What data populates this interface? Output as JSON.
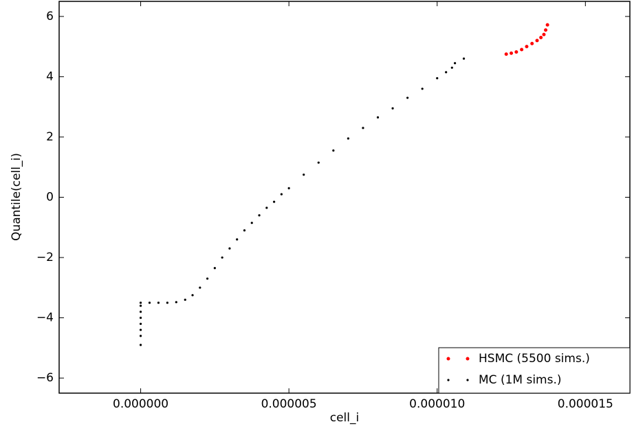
{
  "chart_data": {
    "type": "scatter",
    "xlabel": "cell_i",
    "ylabel": "Quantile(cell_i)",
    "xlim": [
      -2.75e-06,
      1.65e-05
    ],
    "ylim": [
      -6.5,
      6.5
    ],
    "xticks": [
      {
        "value": 0,
        "label": "0.000000"
      },
      {
        "value": 5e-06,
        "label": "0.000005"
      },
      {
        "value": 1e-05,
        "label": "0.000010"
      },
      {
        "value": 1.5e-05,
        "label": "0.000015"
      }
    ],
    "yticks": [
      {
        "value": -6,
        "label": "−6"
      },
      {
        "value": -4,
        "label": "−4"
      },
      {
        "value": -2,
        "label": "−2"
      },
      0,
      2,
      4,
      6
    ],
    "grid": false,
    "legend": "lower right",
    "series": [
      {
        "name": "HSMC (5500 sims.)",
        "color": "#ff0000",
        "x": [
          1.233e-05,
          1.25e-05,
          1.267e-05,
          1.285e-05,
          1.302e-05,
          1.32e-05,
          1.337e-05,
          1.35e-05,
          1.36e-05,
          1.366e-05,
          1.372e-05
        ],
        "values": [
          4.75,
          4.78,
          4.82,
          4.9,
          5.0,
          5.1,
          5.2,
          5.3,
          5.4,
          5.55,
          5.72
        ]
      },
      {
        "name": "MC (1M sims.)",
        "color": "#000000",
        "x": [
          0,
          0,
          0,
          0,
          0,
          0,
          0,
          0,
          3e-07,
          6e-07,
          9e-07,
          1.2e-06,
          1.5e-06,
          1.75e-06,
          2e-06,
          2.25e-06,
          2.5e-06,
          2.75e-06,
          3e-06,
          3.25e-06,
          3.5e-06,
          3.75e-06,
          4e-06,
          4.25e-06,
          4.5e-06,
          4.75e-06,
          5e-06,
          5.5e-06,
          6e-06,
          6.5e-06,
          7e-06,
          7.5e-06,
          8e-06,
          8.5e-06,
          9e-06,
          9.5e-06,
          1e-05,
          1.03e-05,
          1.05e-05,
          1.06e-05,
          1.09e-05
        ],
        "values": [
          -4.9,
          -4.6,
          -4.4,
          -4.2,
          -4.0,
          -3.8,
          -3.6,
          -3.5,
          -3.5,
          -3.5,
          -3.5,
          -3.48,
          -3.4,
          -3.25,
          -3.0,
          -2.7,
          -2.35,
          -2.0,
          -1.7,
          -1.4,
          -1.1,
          -0.85,
          -0.6,
          -0.35,
          -0.15,
          0.1,
          0.3,
          0.75,
          1.15,
          1.55,
          1.95,
          2.3,
          2.65,
          2.95,
          3.3,
          3.6,
          3.95,
          4.15,
          4.3,
          4.45,
          4.6
        ]
      }
    ]
  }
}
